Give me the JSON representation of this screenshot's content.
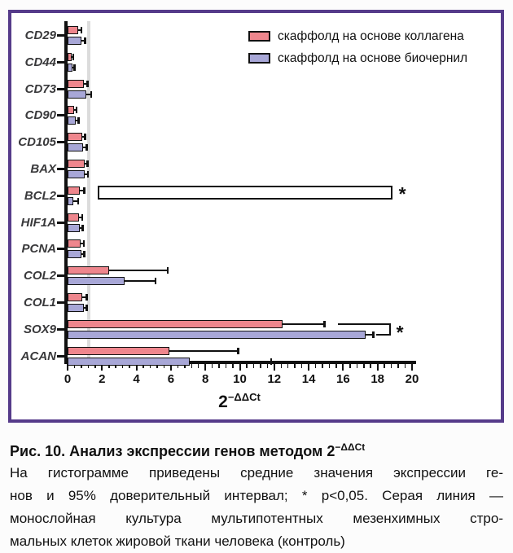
{
  "figure": {
    "legend": [
      {
        "label": "скаффолд на основе коллагена",
        "color": "#EE868D"
      },
      {
        "label": "скаффолд на основе биочернил",
        "color": "#A8A7D7"
      }
    ],
    "axis_title_base": "2",
    "axis_title_sup": "−ΔΔCt"
  },
  "chart_data": {
    "type": "bar",
    "orientation": "horizontal",
    "title": "",
    "xlabel": "2^−ΔΔCt",
    "xlim": [
      0,
      20
    ],
    "xticks": [
      0,
      2,
      4,
      6,
      8,
      10,
      12,
      14,
      16,
      18,
      20
    ],
    "minor_ticks_per_interval": 4,
    "control_line_x": 1.25,
    "control_line_meaning": "монослойная культура МСК (контроль)",
    "categories": [
      "CD29",
      "CD44",
      "CD73",
      "CD90",
      "CD105",
      "BAX",
      "BCL2",
      "HIF1A",
      "PCNA",
      "COL2",
      "COL1",
      "SOX9",
      "ACAN"
    ],
    "series": [
      {
        "name": "скаффолд на основе коллагена",
        "color": "#EE868D",
        "values": [
          0.6,
          0.25,
          0.95,
          0.4,
          0.85,
          1.0,
          0.7,
          0.68,
          0.78,
          2.4,
          0.87,
          12.5,
          5.9
        ],
        "err_hi": [
          0.8,
          0.33,
          1.15,
          0.52,
          1.0,
          1.15,
          0.95,
          0.85,
          0.93,
          5.8,
          1.1,
          14.9,
          9.9
        ]
      },
      {
        "name": "скаффолд на основе биочернил",
        "color": "#A8A7D7",
        "values": [
          0.8,
          0.3,
          1.1,
          0.45,
          0.88,
          1.0,
          0.35,
          0.7,
          0.8,
          3.3,
          0.93,
          17.3,
          7.1
        ],
        "err_hi": [
          1.0,
          0.4,
          1.35,
          0.62,
          1.1,
          1.18,
          0.6,
          0.87,
          0.95,
          5.1,
          1.1,
          17.75,
          11.8
        ]
      }
    ],
    "annotations": [
      {
        "type": "open_bar",
        "category": "BCL2",
        "from": 1.75,
        "to": 18.85,
        "label": "*"
      },
      {
        "type": "bracket",
        "category": "SOX9",
        "from": 15.7,
        "to": 18.75,
        "stub_from": 17.9,
        "label": "*"
      }
    ],
    "legend_position": "top-right",
    "grid": false
  },
  "caption": {
    "title_prefix": "Рис. 10. Анализ экспрессии генов методом 2",
    "title_sup": "−ΔΔCt",
    "lines": [
      "На гистограмме приведены средние значения экспрессии ге-",
      "нов и 95% доверительный интервал; * p<0,05. Серая линия —",
      "монослойная культура мультипотентных мезенхимных стро-",
      "мальных клеток жировой ткани человека (контроль)"
    ]
  }
}
